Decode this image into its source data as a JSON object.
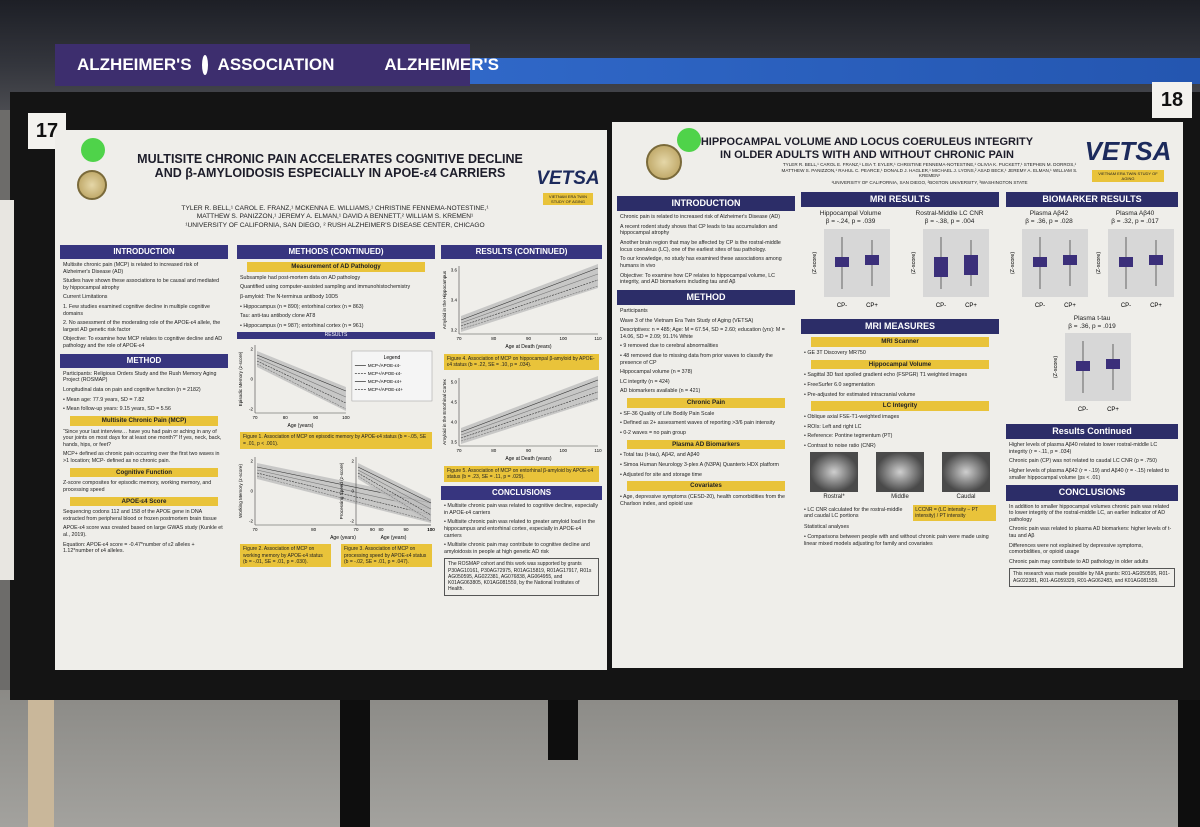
{
  "banner": {
    "left": "ALZHEIMER'S",
    "association": "ASSOCIATION",
    "right": "ALZHEIMER'S"
  },
  "posters": [
    {
      "number": "17",
      "title": "MULTISITE CHRONIC PAIN ACCELERATES COGNITIVE DECLINE AND β-AMYLOIDOSIS ESPECIALLY IN APOE-ε4 CARRIERS",
      "authors": "TYLER R. BELL,¹ CAROL E. FRANZ,¹ MCKENNA E. WILLIAMS,¹ CHRISTINE FENNEMA-NOTESTINE,¹ MATTHEW S. PANIZZON,¹ JEREMY A. ELMAN,¹ DAVID A BENNETT,² WILLIAM S. KREMEN¹",
      "affiliations": "¹UNIVERSITY OF CALIFORNIA, SAN DIEGO, ² RUSH ALZHEIMER'S DISEASE CENTER, CHICAGO",
      "logo": "VETSA",
      "logo_subtitle": "VIETNAM ERA TWIN STUDY OF AGING",
      "columns": [
        [
          {
            "heading": "INTRODUCTION",
            "items": [
              {
                "text": "Multisite chronic pain (MCP) is related to increased risk of Alzheimer's Disease (AD)"
              },
              {
                "text": "Studies have shown these associations to be causal and mediated by hippocampal atrophy"
              },
              {
                "text": "Current Limitations"
              },
              {
                "text": "1. Few studies examined cognitive decline in multiple cognitive domains"
              },
              {
                "text": "2. No assessment of the moderating role of the APOE-ε4 allele, the largest AD genetic risk factor"
              },
              {
                "text": "Objective: To examine how MCP relates to cognitive decline and AD pathology and the role of APOE-ε4"
              }
            ]
          },
          {
            "heading": "METHOD",
            "items": [
              {
                "text": "Participants: Religious Orders Study and the Rush Memory Aging Project (ROSMAP)"
              },
              {
                "text": "Longitudinal data on pain and cognitive function (n = 2182)"
              },
              {
                "text": "• Mean age: 77.9 years, SD = 7.82"
              },
              {
                "text": "• Mean follow-up years: 9.15 years, SD = 5.56"
              },
              {
                "subheading": "Multisite Chronic Pain (MCP)"
              },
              {
                "text": "“Since your last interview… have you had pain or aching in any of your joints on most days for at least one month?” If yes, neck, back, hands, hips, or feet?"
              },
              {
                "text": "MCP+ defined as chronic pain occurring over the first two waves in >1 location; MCP- defined as no chronic pain."
              },
              {
                "subheading": "Cognitive Function"
              },
              {
                "text": "Z-score composites for episodic memory, working memory, and processing speed"
              },
              {
                "subheading": "APOE-ε4 Score"
              },
              {
                "text": "Sequencing codons 112 and 158 of the APOE gene in DNA extracted from peripheral blood or frozen postmortem brain tissue"
              },
              {
                "text": "APOE-ε4 score was created based on large GWAS study (Kunkle et al., 2019)."
              },
              {
                "text": "Equation: APOE-ε4 score = -0.47*number of ε2 alleles + 1.12*number of ε4 alleles."
              }
            ]
          }
        ],
        [
          {
            "heading": "METHODS (CONTINUED)",
            "items": [
              {
                "subheading": "Measurement of AD Pathology"
              },
              {
                "text": "Subsample had post-mortem data on AD pathology"
              },
              {
                "text": "Quantified using computer-assisted sampling and immunohistochemistry"
              },
              {
                "text": "β-amyloid: The N-terminus antibody 10D5"
              },
              {
                "text": "• Hippocampus (n = 890); entorhinal cortex (n = 863)"
              },
              {
                "text": "Tau: anti-tau antibody clone AT8"
              },
              {
                "text": "• Hippocampus (n = 987); entorhinal cortex (n = 961)"
              },
              {
                "minor": "RESULTS"
              },
              {
                "plot": {
                  "y_label": "Episodic Memory (z-score)",
                  "x_label": "Age (years)",
                  "x_ticks": [
                    "70",
                    "80",
                    "90",
                    "100"
                  ],
                  "y_ticks": [
                    "2",
                    "0",
                    "-2"
                  ],
                  "legend_title": "Legend",
                  "legend": [
                    "MCP-/APOE-ε4-",
                    "MCP+/APOE-ε4-",
                    "MCP-/APOE-ε4+",
                    "MCP+/APOE-ε4+"
                  ]
                }
              },
              {
                "caption": "Figure 1. Association of MCP on episodic memory by APOE-ε4 status (b = -.05, SE = .01, p < .001)."
              },
              {
                "plot_pair": [
                  {
                    "y_label": "Working Memory (z-score)",
                    "x_label": "Age (years)",
                    "x_ticks": [
                      "70",
                      "80",
                      "90",
                      "100"
                    ],
                    "y_ticks": [
                      "2",
                      "0",
                      "-2"
                    ]
                  },
                  {
                    "y_label": "Processing Speed (z-score)",
                    "x_label": "Age (years)",
                    "x_ticks": [
                      "70",
                      "80",
                      "90",
                      "100"
                    ],
                    "y_ticks": [
                      "2",
                      "0",
                      "-2"
                    ]
                  }
                ]
              },
              {
                "caption_pair": [
                  "Figure 2. Association of MCP on working memory by APOE-ε4 status (b = -.01, SE = .01, p = .030).",
                  "Figure 3. Association of MCP on processing speed by APOE-ε4 status (b = -.02, SE = .01, p = .047)."
                ]
              }
            ]
          }
        ],
        [
          {
            "heading": "RESULTS (CONTINUED)",
            "items": [
              {
                "plot": {
                  "y_label": "Amyloid in the Hippocampus",
                  "x_label": "Age at Death (years)",
                  "x_ticks": [
                    "70",
                    "80",
                    "90",
                    "100",
                    "110"
                  ],
                  "y_ticks": [
                    "3.6",
                    "3.4",
                    "3.2"
                  ]
                }
              },
              {
                "caption": "Figure 4. Association of MCP on hippocampal β-amyloid by APOE-ε4 status (b = .22, SE = .10, p = .034)."
              },
              {
                "plot": {
                  "y_label": "Amyloid in the Entorhinal Cortex",
                  "x_label": "Age at Death (years)",
                  "x_ticks": [
                    "70",
                    "80",
                    "90",
                    "100",
                    "110"
                  ],
                  "y_ticks": [
                    "5.0",
                    "4.5",
                    "4.0",
                    "3.5"
                  ]
                }
              },
              {
                "caption": "Figure 5. Association of MCP on entorhinal β-amyloid by APOE-ε4 status (b = .23, SE = .11, p = .029)."
              }
            ]
          },
          {
            "heading": "CONCLUSIONS",
            "items": [
              {
                "text": "• Multisite chronic pain was related to cognitive decline, especially in APOE-ε4 carriers"
              },
              {
                "text": "• Multisite chronic pain was related to greater amyloid load in the hippocampus and entorhinal cortex, especially in APOE-ε4 carriers"
              },
              {
                "text": "• Multisite chronic pain may contribute to cognitive decline and amyloidosis in people at high genetic AD risk"
              },
              {
                "note": "The ROSMAP cohort and this work was supported by grants P30AG10161, P30AG72975, R01AG15819, R01AG17917, R01s AG050595, AG022381, AG076838, AG064955, and K01AG063805, K01AG081559, by the National Institutes of Health."
              }
            ]
          }
        ]
      ]
    },
    {
      "number": "18",
      "title": "HIPPOCAMPAL VOLUME AND LOCUS COERULEUS INTEGRITY IN OLDER ADULTS WITH AND WITHOUT CHRONIC PAIN",
      "authors": "TYLER R. BELL,¹ CAROL E. FRANZ,¹ LISA T. EYLER,¹ CHRISTINE FENNEMA-NOTESTINE,¹ OLIVIA K. PUCKETT,¹ STEPHEN M. DORROS,¹ MATTHEW S. PANIZZON,¹ RAHUL C. PEARCE,¹ DONALD J. HAGLER,¹ MICHAEL J. LYONS,² ASAD BECK,¹ JEREMY A. ELMAN,¹ WILLIAM S. KREMEN¹",
      "affiliations": "¹UNIVERSITY OF CALIFORNIA, SAN DIEGO, ²BOSTON UNIVERSITY, ³WASHINGTON STATE",
      "logo": "VETSA",
      "logo_subtitle": "VIETNAM ERA TWIN STUDY OF AGING",
      "columns": [
        [
          {
            "heading": "INTRODUCTION",
            "items": [
              {
                "text": "Chronic pain is related to increased risk of Alzheimer's Disease (AD)"
              },
              {
                "text": "A recent rodent study shows that CP leads to tau accumulation and hippocampal atrophy"
              },
              {
                "text": "Another brain region that may be affected by CP is the rostral-middle locus coeruleus (LC), one of the earliest sites of tau pathology."
              },
              {
                "text": "To our knowledge, no study has examined these associations among humans in vivo"
              },
              {
                "text": "Objective: To examine how CP relates to hippocampal volume, LC integrity, and AD biomarkers including tau and Aβ"
              }
            ]
          },
          {
            "heading": "METHOD",
            "items": [
              {
                "text": "Participants"
              },
              {
                "text": "Wave 3 of the Vietnam Era Twin Study of Aging (VETSA)"
              },
              {
                "text": "Descriptives: n = 485; Age: M = 67.54, SD = 2.60; education (yrs): M = 14.06, SD = 2.09; 91.1% White"
              },
              {
                "text": "• 9 removed due to cerebral abnormalities"
              },
              {
                "text": "• 48 removed due to missing data from prior waves to classify the presence of CP"
              },
              {
                "text": "Hippocampal volume (n = 378)"
              },
              {
                "text": "LC integrity (n = 424)"
              },
              {
                "text": "AD biomarkers available (n = 421)"
              },
              {
                "subheading": "Chronic Pain"
              },
              {
                "text": "• SF-36 Quality of Life Bodily Pain Scale"
              },
              {
                "text": "• Defined as 2+ assessment waves of reporting >3/6 pain intensity"
              },
              {
                "text": "• 0-2 waves = no pain group"
              },
              {
                "subheading": "Plasma AD Biomarkers"
              },
              {
                "text": "• Total tau (t-tau), Aβ42, and Aβ40"
              },
              {
                "text": "• Simoa Human Neurology 3-plex A (N3PA) Quanterix HDX platform"
              },
              {
                "text": "• Adjusted for site and storage time"
              },
              {
                "subheading": "Covariates"
              },
              {
                "text": "• Age, depressive symptoms (CESD-20), health comorbidities from the Charlson index, and opioid use"
              }
            ]
          }
        ],
        [
          {
            "heading": "MRI RESULTS",
            "items": [
              {
                "boxplots": {
                  "y_label": "(Z-score)",
                  "groups": [
                    "CP-",
                    "CP+"
                  ],
                  "panels": [
                    {
                      "title": "Hippocampal Volume",
                      "stat": "β = -.24, p = .039"
                    },
                    {
                      "title": "Rostral-Middle LC CNR",
                      "stat": "β = -.38, p = .004"
                    }
                  ]
                }
              }
            ]
          },
          {
            "heading": "MRI MEASURES",
            "items": [
              {
                "subheading": "MRI Scanner"
              },
              {
                "text": "• GE 3T Discovery MR750"
              },
              {
                "subheading": "Hippocampal Volume"
              },
              {
                "text": "• Sagittal 3D fast spoiled gradient echo (FSPGR) T1 weighted images"
              },
              {
                "text": "• FreeSurfer 6.0 segmentation"
              },
              {
                "text": "• Pre-adjusted for estimated intracranial volume"
              },
              {
                "subheading": "LC Integrity"
              },
              {
                "text": "• Oblique axial FSE-T1-weighted images"
              },
              {
                "text": "• ROIs: Left and right LC"
              },
              {
                "text": "• Reference: Pontine tegmentum (PT)"
              },
              {
                "text": "• Contrast to noise ratio (CNR)"
              },
              {
                "images": [
                  "Rostral*",
                  "Middle",
                  "Caudal"
                ]
              },
              {
                "formula_row": {
                  "text": "• LC CNR calculated for the rostral-middle and caudal LC portions",
                  "formula": "LCCNR = (LC intensity − PT intensity) / PT intensity"
                }
              },
              {
                "text": "Statistical analyses"
              },
              {
                "text": "• Comparisons between people with and without chronic pain were made using linear mixed models adjusting for family and covariates"
              }
            ]
          }
        ],
        [
          {
            "heading": "BIOMARKER RESULTS",
            "items": [
              {
                "boxplots": {
                  "y_label": "(Z-score)",
                  "groups": [
                    "CP-",
                    "CP+"
                  ],
                  "panels": [
                    {
                      "title": "Plasma Aβ42",
                      "stat": "β = .36, p = .028"
                    },
                    {
                      "title": "Plasma Aβ40",
                      "stat": "β = .32, p = .017"
                    }
                  ]
                }
              },
              {
                "boxplots": {
                  "y_label": "(Z-score)",
                  "groups": [
                    "CP-",
                    "CP+"
                  ],
                  "panels": [
                    {
                      "title": "Plasma t-tau",
                      "stat": "β = .36, p = .019"
                    }
                  ]
                }
              }
            ]
          },
          {
            "heading": "Results Continued",
            "items": [
              {
                "text": "Higher levels of plasma Aβ40 related to lower rostral-middle LC integrity (r = -.11, p = .034)"
              },
              {
                "text": "Chronic pain (CP) was not related to caudal LC CNR (p = .750)"
              },
              {
                "text": "Higher levels of plasma Aβ42 (r = -.19) and Aβ40 (r = -.15) related to smaller hippocampal volume (ps < .01)"
              }
            ]
          },
          {
            "heading": "CONCLUSIONS",
            "items": [
              {
                "text": "In addition to smaller hippocampal volumes chronic pain was related to lower integrity of the rostral-middle LC, an earlier indicator of AD pathology"
              },
              {
                "text": "Chronic pain was related to plasma AD biomarkers: higher levels of t-tau and Aβ"
              },
              {
                "text": "Differences were not explained by depressive symptoms, comorbidities, or opioid usage"
              },
              {
                "text": "Chronic pain may contribute to AD pathology in older adults"
              },
              {
                "note": "This research was made possible by NIA grants: R01-AG050595, R01-AG022381, R01-AG059329, R01-AG062483, and K01AG081559."
              }
            ]
          }
        ]
      ]
    }
  ]
}
